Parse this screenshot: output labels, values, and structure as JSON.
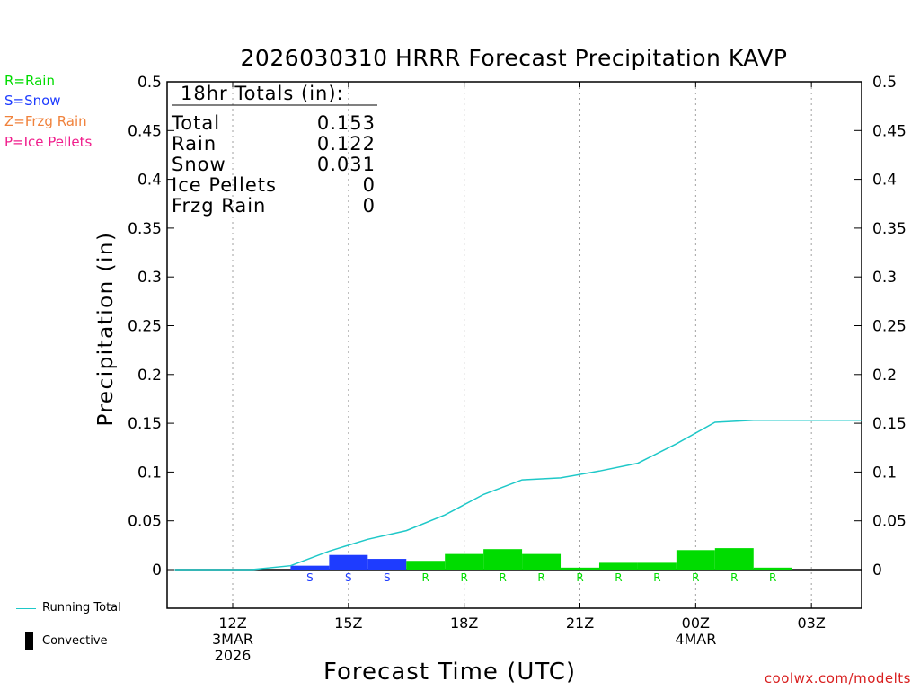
{
  "chart_data": {
    "type": "bar",
    "title": "2026030310 HRRR Forecast Precipitation KAVP",
    "xlabel": "Forecast Time (UTC)",
    "ylabel": "Precipitation (in)",
    "ylim": [
      -0.04,
      0.5
    ],
    "xlim": [
      10.3,
      28.3
    ],
    "yticks": [
      "0.5",
      "0.45",
      "0.4",
      "0.35",
      "0.3",
      "0.25",
      "0.2",
      "0.15",
      "0.1",
      "0.05",
      "0"
    ],
    "xticks": [
      {
        "hour": 12,
        "lines": [
          "12Z",
          "3MAR",
          "2026"
        ]
      },
      {
        "hour": 15,
        "lines": [
          "15Z"
        ]
      },
      {
        "hour": 18,
        "lines": [
          "18Z"
        ]
      },
      {
        "hour": 21,
        "lines": [
          "21Z"
        ]
      },
      {
        "hour": 24,
        "lines": [
          "00Z",
          "4MAR"
        ]
      },
      {
        "hour": 27,
        "lines": [
          "03Z"
        ]
      }
    ],
    "bars": [
      {
        "hour": 11,
        "value": 0.0,
        "type": ""
      },
      {
        "hour": 12,
        "value": 0.0,
        "type": ""
      },
      {
        "hour": 13,
        "value": 0.0,
        "type": ""
      },
      {
        "hour": 14,
        "value": 0.004,
        "type": "S"
      },
      {
        "hour": 15,
        "value": 0.015,
        "type": "S"
      },
      {
        "hour": 16,
        "value": 0.011,
        "type": "S"
      },
      {
        "hour": 17,
        "value": 0.009,
        "type": "R"
      },
      {
        "hour": 18,
        "value": 0.016,
        "type": "R"
      },
      {
        "hour": 19,
        "value": 0.021,
        "type": "R"
      },
      {
        "hour": 20,
        "value": 0.016,
        "type": "R"
      },
      {
        "hour": 21,
        "value": 0.002,
        "type": "R"
      },
      {
        "hour": 22,
        "value": 0.007,
        "type": "R"
      },
      {
        "hour": 23,
        "value": 0.007,
        "type": "R"
      },
      {
        "hour": 24,
        "value": 0.02,
        "type": "R"
      },
      {
        "hour": 25,
        "value": 0.022,
        "type": "R"
      },
      {
        "hour": 26,
        "value": 0.002,
        "type": "R"
      },
      {
        "hour": 27,
        "value": 0.0,
        "type": ""
      },
      {
        "hour": 28,
        "value": 0.0,
        "type": ""
      }
    ],
    "running_total": [
      {
        "hour": 10.5,
        "value": 0.0
      },
      {
        "hour": 11.5,
        "value": 0.0
      },
      {
        "hour": 12.5,
        "value": 0.0
      },
      {
        "hour": 13.5,
        "value": 0.004
      },
      {
        "hour": 14.5,
        "value": 0.019
      },
      {
        "hour": 15.5,
        "value": 0.031
      },
      {
        "hour": 16.5,
        "value": 0.04
      },
      {
        "hour": 17.5,
        "value": 0.056
      },
      {
        "hour": 18.5,
        "value": 0.077
      },
      {
        "hour": 19.5,
        "value": 0.092
      },
      {
        "hour": 20.5,
        "value": 0.094
      },
      {
        "hour": 21.5,
        "value": 0.101
      },
      {
        "hour": 22.5,
        "value": 0.109
      },
      {
        "hour": 23.5,
        "value": 0.129
      },
      {
        "hour": 24.5,
        "value": 0.151
      },
      {
        "hour": 25.5,
        "value": 0.153
      },
      {
        "hour": 26.5,
        "value": 0.153
      },
      {
        "hour": 28.3,
        "value": 0.153
      }
    ],
    "totals": {
      "header": "18hr Totals (in):",
      "rows": [
        {
          "label": "Total",
          "value": "0.153"
        },
        {
          "label": "Rain",
          "value": "0.122"
        },
        {
          "label": "Snow",
          "value": "0.031"
        },
        {
          "label": "Ice Pellets",
          "value": "0"
        },
        {
          "label": "Frzg Rain",
          "value": "0"
        }
      ]
    },
    "colors": {
      "rain": "#00dc00",
      "snow": "#1e3cff",
      "frzg_rain": "#f0823c",
      "ice_pellets": "#f01e8c",
      "running_total": "#1ec8c8",
      "convective": "#000000",
      "grid": "#a0a0a0"
    }
  },
  "legend": {
    "rain": "R=Rain",
    "snow": "S=Snow",
    "frzg_rain": "Z=Frzg Rain",
    "ice_pellets": "P=Ice Pellets",
    "running_total": "Running Total",
    "convective": "Convective"
  },
  "watermark": "coolwx.com/modelts"
}
